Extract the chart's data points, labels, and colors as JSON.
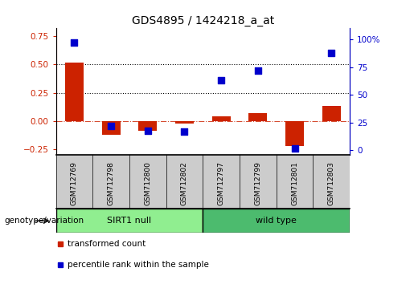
{
  "title": "GDS4895 / 1424218_a_at",
  "samples": [
    "GSM712769",
    "GSM712798",
    "GSM712800",
    "GSM712802",
    "GSM712797",
    "GSM712799",
    "GSM712801",
    "GSM712803"
  ],
  "transformed_count": [
    0.52,
    -0.12,
    -0.085,
    -0.02,
    0.04,
    0.07,
    -0.22,
    0.13
  ],
  "percentile_rank": [
    97,
    22,
    18,
    17,
    63,
    72,
    2,
    88
  ],
  "groups": [
    {
      "label": "SIRT1 null",
      "start": 0,
      "end": 4,
      "color": "#90EE90"
    },
    {
      "label": "wild type",
      "start": 4,
      "end": 8,
      "color": "#4CBB6E"
    }
  ],
  "bar_color": "#CC2200",
  "dot_color": "#0000CC",
  "ylim_left": [
    -0.3,
    0.82
  ],
  "ylim_right": [
    -4.0,
    110.0
  ],
  "yticks_left": [
    -0.25,
    0.0,
    0.25,
    0.5,
    0.75
  ],
  "yticks_right": [
    0,
    25,
    50,
    75,
    100
  ],
  "hlines": [
    0.25,
    0.5
  ],
  "legend_items": [
    {
      "label": "transformed count",
      "color": "#CC2200"
    },
    {
      "label": "percentile rank within the sample",
      "color": "#0000CC"
    }
  ],
  "genotype_label": "genotype/variation",
  "background_color": "#ffffff",
  "tick_label_color_left": "#CC2200",
  "tick_label_color_right": "#0000CC",
  "label_fontsize": 7.5,
  "title_fontsize": 10
}
